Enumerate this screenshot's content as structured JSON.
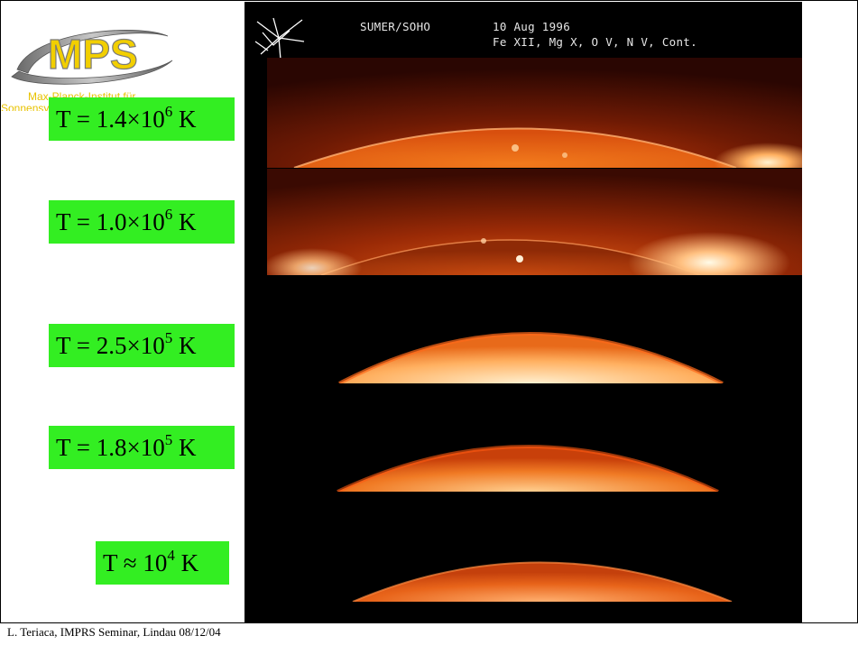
{
  "logo": {
    "acronym": "MPS",
    "institute_line1": "Max-Planck-Institut für",
    "institute_line2": "Sonnensystemforschung",
    "colors": {
      "arc": "#9a9a9a",
      "text_fill": "#e8c200"
    }
  },
  "image": {
    "instrument": "SUMER/SOHO",
    "date": "10 Aug 1996",
    "lines": "Fe XII, Mg X, O V, N V, Cont."
  },
  "temperatures": [
    {
      "prefix": "T = 1.4×10",
      "exp": "6",
      "unit": " K"
    },
    {
      "prefix": "T = 1.0×10",
      "exp": "6",
      "unit": " K"
    },
    {
      "prefix": "T = 2.5×10",
      "exp": "5",
      "unit": " K"
    },
    {
      "prefix": "T = 1.8×10",
      "exp": "5",
      "unit": " K"
    },
    {
      "prefix": "T ≈ 10",
      "exp": "4",
      "unit": " K"
    }
  ],
  "footer": "L. Teriaca, IMPRS Seminar, Lindau 08/12/04",
  "colors": {
    "label_bg": "#33ee22",
    "panel_bg": "#000000"
  }
}
